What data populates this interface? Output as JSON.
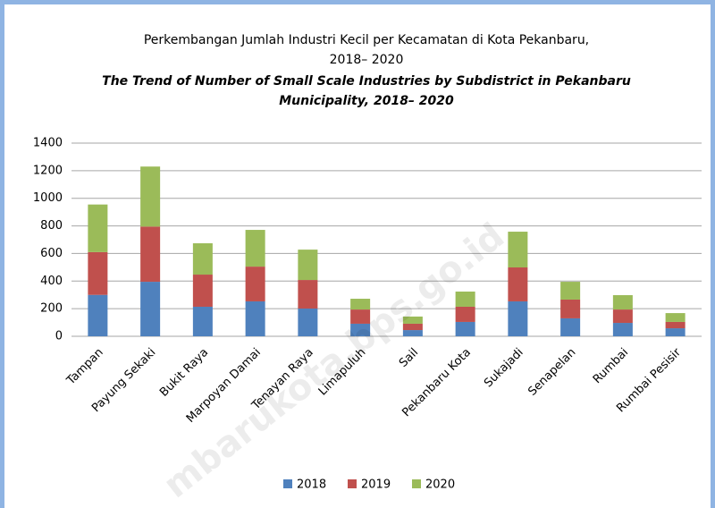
{
  "chart_data": {
    "type": "stacked_bar",
    "title": [
      "Perkembangan Jumlah Industri Kecil per Kecamatan di Kota  Pekanbaru,",
      "2018– 2020"
    ],
    "subtitle": [
      "The Trend of Number of Small Scale Industries by Subdistrict in Pekanbaru",
      "Municipality, 2018– 2020"
    ],
    "watermark": "mbarukota.bps.go.id",
    "categories": [
      "Tampan",
      "Payung Sekaki",
      "Bukit Raya",
      "Marpoyan Damai",
      "Tenayan Raya",
      "Limapuluh",
      "Sail",
      "Pekanbaru Kota",
      "Sukajadi",
      "Senapelan",
      "Rumbai",
      "Rumbai Pesisir"
    ],
    "series": [
      {
        "name": "2018",
        "color": "#4f81bd",
        "values": [
          300,
          395,
          214,
          253,
          201,
          91,
          45,
          104,
          253,
          130,
          97,
          58
        ]
      },
      {
        "name": "2019",
        "color": "#c0504d",
        "values": [
          310,
          400,
          233,
          252,
          207,
          103,
          46,
          110,
          246,
          136,
          97,
          46
        ]
      },
      {
        "name": "2020",
        "color": "#9bbb59",
        "values": [
          345,
          435,
          227,
          266,
          220,
          78,
          52,
          110,
          259,
          129,
          104,
          64
        ]
      }
    ],
    "ylim": [
      0,
      1400
    ],
    "yticks": [
      0,
      200,
      400,
      600,
      800,
      1000,
      1200,
      1400
    ],
    "grid": true,
    "legend": "bottom"
  }
}
